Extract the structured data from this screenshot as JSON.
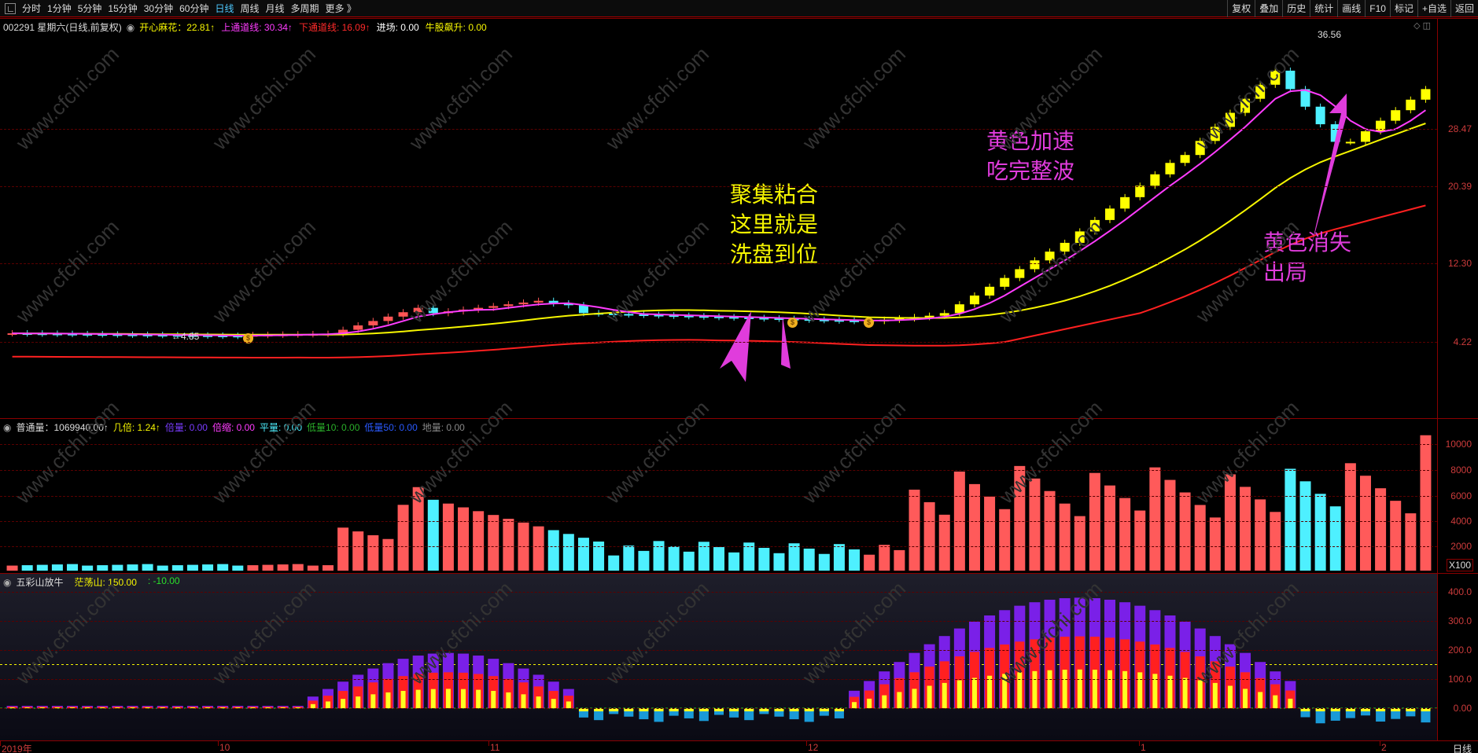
{
  "toolbar": {
    "periods": [
      "分时",
      "1分钟",
      "5分钟",
      "15分钟",
      "30分钟",
      "60分钟",
      "日线",
      "周线",
      "月线",
      "多周期",
      "更多 》"
    ],
    "active_period": "日线",
    "tools": [
      "复权",
      "叠加",
      "历史",
      "统计",
      "画线",
      "F10",
      "标记",
      "+自选",
      "返回"
    ]
  },
  "price_panel": {
    "header": "002291 星期六(日线,前复权)",
    "indicator_name": "开心麻花：",
    "items": [
      {
        "label": "开心麻花：22.81↑",
        "color": "#f6f600"
      },
      {
        "label": "上通道线: 30.34↑",
        "color": "#ff3cff"
      },
      {
        "label": "下通道线: 16.09↑",
        "color": "#ff2a2a"
      },
      {
        "label": "进场: 0.00",
        "color": "#ffffff"
      },
      {
        "label": "牛股飙升: 0.00",
        "color": "#f6f600"
      }
    ],
    "y_ticks": [
      "28.47",
      "20.39",
      "12.30",
      "4.22"
    ],
    "high_label": "36.56",
    "low_label": "←4.85",
    "annotations": [
      {
        "text": "聚集粘合\n这里就是\n洗盘到位",
        "color": "#f6f600"
      },
      {
        "text": "黄色加速\n吃完整波",
        "color": "#e03cdc"
      },
      {
        "text": "黄色消失\n出局",
        "color": "#e03cdc"
      }
    ],
    "coin_label": "$"
  },
  "volume_panel": {
    "items": [
      {
        "label": "普通量：1069940.00↑",
        "color": "#dddddd"
      },
      {
        "label": "几倍: 1.24↑",
        "color": "#f6f600"
      },
      {
        "label": "倍量: 0.00",
        "color": "#7a3cff"
      },
      {
        "label": "倍缩: 0.00",
        "color": "#ff3cff"
      },
      {
        "label": "平量: 0.00",
        "color": "#4ef0ff"
      },
      {
        "label": "低量10: 0.00",
        "color": "#2ab02a"
      },
      {
        "label": "低量50: 0.00",
        "color": "#2a5aff"
      },
      {
        "label": "地量: 0.00",
        "color": "#888888"
      }
    ],
    "y_ticks": [
      "10000",
      "8000",
      "6000",
      "4000",
      "2000"
    ],
    "unit": "X100"
  },
  "indicator_panel": {
    "items": [
      {
        "label": "五彩山放牛",
        "color": "#dddddd"
      },
      {
        "label": "茫荡山: 150.00",
        "color": "#f6f600"
      },
      {
        "label": ": -10.00",
        "color": "#2ae02a"
      }
    ],
    "y_ticks": [
      "400.0",
      "300.0",
      "200.0",
      "100.0",
      "0.00"
    ]
  },
  "time_axis": [
    "2019年",
    "10",
    "11",
    "12",
    "1",
    "2"
  ],
  "period_label": "日线",
  "watermark": "www.cfchi.com"
}
